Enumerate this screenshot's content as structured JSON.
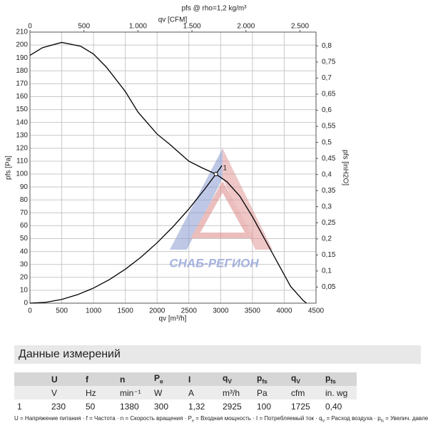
{
  "chart_data": {
    "type": "line",
    "title": "pfs @ rho=1,2 kg/m³",
    "x_label": "qv [m³/h]",
    "x2_label": "qv [CFM]",
    "y_label": "pfs [Pa]",
    "y2_label": "pfs [inH2O]",
    "xlim": [
      0,
      4500
    ],
    "xticks": [
      0,
      500,
      1000,
      1500,
      2000,
      2500,
      3000,
      3500,
      4000,
      4500
    ],
    "x2lim": [
      0,
      2648.6
    ],
    "x2ticks": [
      0,
      500,
      {
        "value": 1000,
        "label": "1.000"
      },
      {
        "value": 1500,
        "label": "1.500"
      },
      {
        "value": 2000,
        "label": "2.000"
      },
      {
        "value": 2500,
        "label": "2.500"
      }
    ],
    "ylim": [
      0,
      210
    ],
    "yticks": [
      0,
      10,
      20,
      30,
      40,
      50,
      60,
      70,
      80,
      90,
      100,
      110,
      120,
      130,
      140,
      150,
      160,
      170,
      180,
      190,
      200,
      210
    ],
    "y2lim": [
      0,
      0.843
    ],
    "y2ticks": [
      {
        "value": 0.05,
        "label": "0,05"
      },
      {
        "value": 0.1,
        "label": "0,1"
      },
      {
        "value": 0.15,
        "label": "0,15"
      },
      {
        "value": 0.2,
        "label": "0,2"
      },
      {
        "value": 0.25,
        "label": "0,25"
      },
      {
        "value": 0.3,
        "label": "0,3"
      },
      {
        "value": 0.35,
        "label": "0,35"
      },
      {
        "value": 0.4,
        "label": "0,4"
      },
      {
        "value": 0.45,
        "label": "0,45"
      },
      {
        "value": 0.5,
        "label": "0,5"
      },
      {
        "value": 0.55,
        "label": "0,55"
      },
      {
        "value": 0.6,
        "label": "0,6"
      },
      {
        "value": 0.65,
        "label": "0,65"
      },
      {
        "value": 0.7,
        "label": "0,7"
      },
      {
        "value": 0.75,
        "label": "0,75"
      },
      {
        "value": 0.8,
        "label": "0,8"
      }
    ],
    "grid": true,
    "series": [
      {
        "color": "#000000",
        "x": [
          0,
          200,
          500,
          800,
          1000,
          1200,
          1500,
          1700,
          2000,
          2200,
          2500,
          2700,
          2925,
          3100,
          3300,
          3500,
          3700,
          3900,
          4100,
          4300,
          4350
        ],
        "values": [
          192,
          198,
          202,
          199,
          193,
          183,
          164,
          148,
          131,
          123,
          110,
          105,
          100,
          94,
          83,
          67,
          49,
          31,
          13,
          2,
          0
        ]
      },
      {
        "color": "#000000",
        "x": [
          0,
          250,
          500,
          750,
          1000,
          1250,
          1500,
          1750,
          2000,
          2250,
          2500,
          2750,
          2925,
          3020
        ],
        "values": [
          0,
          0.7,
          2.9,
          6.6,
          11.7,
          18.3,
          26.3,
          35.8,
          46.8,
          59.2,
          73.0,
          88.4,
          100,
          106.6
        ]
      }
    ],
    "annotations": [
      {
        "text": "1",
        "x": 2925,
        "y": 100
      }
    ],
    "watermark": "СНАБ-РЕГИОН"
  },
  "table": {
    "title": "Данные измерений",
    "header": [
      {
        "text": "U"
      },
      {
        "text": "f"
      },
      {
        "text": "n"
      },
      {
        "text": "P",
        "sub": "e"
      },
      {
        "text": "I"
      },
      {
        "text": "q",
        "sub": "V"
      },
      {
        "text": "p",
        "sub": "fs"
      },
      {
        "text": "q",
        "sub": "V"
      },
      {
        "text": "p",
        "sub": "fs"
      }
    ],
    "units": [
      "V",
      "Hz",
      "min⁻¹",
      "W",
      "A",
      "m³/h",
      "Pa",
      "cfm",
      "in. wg"
    ],
    "rows": [
      [
        "1",
        "230",
        "50",
        "1380",
        "300",
        "1,32",
        "2925",
        "100",
        "1725",
        "0,40"
      ]
    ]
  },
  "footnote": {
    "separator": " · ",
    "items": [
      {
        "text": "U",
        "desc": "= Напряжение питания"
      },
      {
        "text": "f",
        "desc": "= Частота"
      },
      {
        "text": "n",
        "desc": "= Скорость вращения"
      },
      {
        "text": "P",
        "sub": "e",
        "desc": "= Входная мощность"
      },
      {
        "text": "I",
        "desc": "= Потребляемый ток"
      },
      {
        "text": "q",
        "sub": "V",
        "desc": "= Расход воздуха"
      },
      {
        "text": "p",
        "sub": "fs",
        "desc": "= Увелич. давления"
      }
    ]
  }
}
